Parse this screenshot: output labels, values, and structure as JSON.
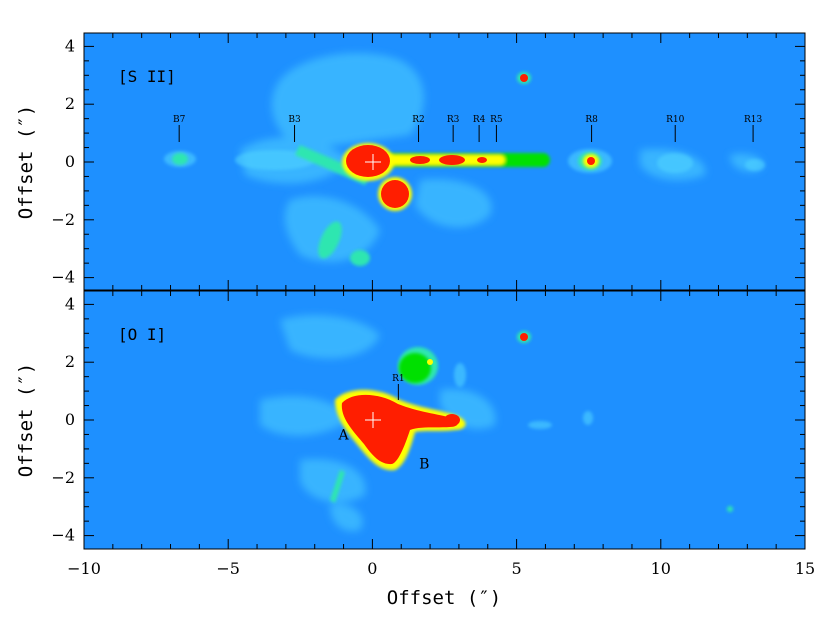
{
  "figure": {
    "xlabel": "Offset (″)",
    "ylabel": "Offset (″)",
    "xlim": [
      -10,
      15
    ],
    "ylim": [
      -4.5,
      4.5
    ],
    "x_ticks": [
      "-10",
      "-5",
      "0",
      "5",
      "10",
      "15"
    ],
    "y_ticks": [
      "4",
      "2",
      "0",
      "-2",
      "-4"
    ],
    "colors": {
      "background": "#1e90ff",
      "low": "#4fd3ff",
      "mid": "#2ee6b0",
      "high": "#00e000",
      "peak": "#ffff00",
      "saturated": "#ff1e00",
      "marker": "#ffffff"
    }
  },
  "panels": [
    {
      "label": "[S II]",
      "knots": [
        {
          "name": "B7",
          "x": -6.7
        },
        {
          "name": "B3",
          "x": -2.7
        },
        {
          "name": "R2",
          "x": 1.6
        },
        {
          "name": "R3",
          "x": 2.8
        },
        {
          "name": "R4",
          "x": 3.7
        },
        {
          "name": "R5",
          "x": 4.3
        },
        {
          "name": "R8",
          "x": 7.6
        },
        {
          "name": "R10",
          "x": 10.5
        },
        {
          "name": "R13",
          "x": 13.2
        }
      ]
    },
    {
      "label": "[O I]",
      "knots": [
        {
          "name": "R1",
          "x": 0.9
        }
      ],
      "sources": [
        {
          "name": "A",
          "x": -1.0,
          "y": -0.5
        },
        {
          "name": "B",
          "x": 1.8,
          "y": -1.5
        }
      ]
    }
  ]
}
